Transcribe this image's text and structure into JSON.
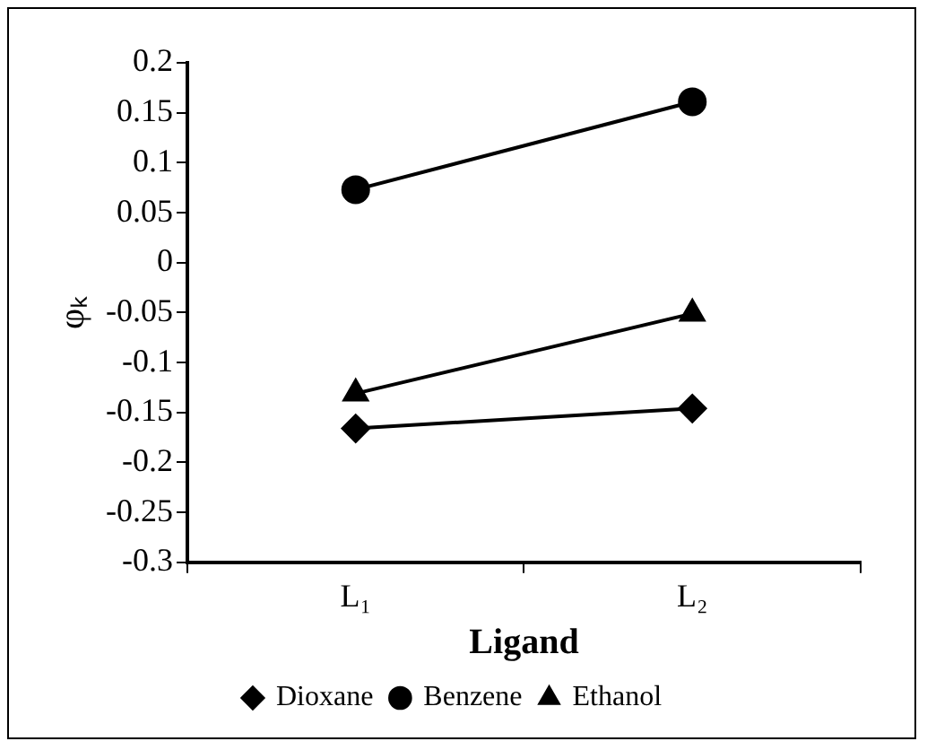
{
  "chart_data": {
    "type": "line",
    "xlabel": "Ligand",
    "ylabel": "φₖ",
    "categories": [
      "L₁",
      "L₂"
    ],
    "series": [
      {
        "name": "Dioxane",
        "color": "#000000",
        "marker": "diamond",
        "values": [
          -0.166,
          -0.146
        ]
      },
      {
        "name": "Benzene",
        "color": "#000000",
        "marker": "circle",
        "values": [
          0.073,
          0.161
        ]
      },
      {
        "name": "Ethanol",
        "color": "#000000",
        "marker": "triangle",
        "values": [
          -0.131,
          -0.051
        ]
      }
    ],
    "ylim": [
      -0.3,
      0.2
    ],
    "yticks": [
      -0.3,
      -0.25,
      -0.2,
      -0.15,
      -0.1,
      -0.05,
      0,
      0.05,
      0.1,
      0.15,
      0.2
    ],
    "grid": false,
    "legend": "bottom",
    "line_style": "solid"
  }
}
